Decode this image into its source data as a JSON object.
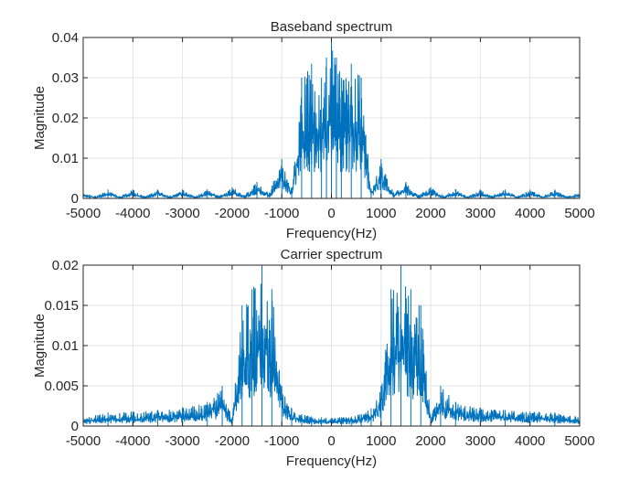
{
  "chart_data": [
    {
      "type": "line",
      "title": "Baseband spectrum",
      "xlabel": "Frequency(Hz)",
      "ylabel": "Magnitude",
      "xlim": [
        -5000,
        5000
      ],
      "ylim": [
        0,
        0.04
      ],
      "xticks": [
        -5000,
        -4000,
        -3000,
        -2000,
        -1000,
        0,
        1000,
        2000,
        3000,
        4000,
        5000
      ],
      "xtick_labels": [
        "-5000",
        "-4000",
        "-3000",
        "-2000",
        "-1000",
        "0",
        "1000",
        "2000",
        "3000",
        "4000",
        "5000"
      ],
      "yticks": [
        0,
        0.01,
        0.02,
        0.03,
        0.04
      ],
      "ytick_labels": [
        "0",
        "0.01",
        "0.02",
        "0.03",
        "0.04"
      ],
      "grid": true,
      "line_color": "#0072BD",
      "series": [
        {
          "x": [
            -5000,
            -4750,
            -4500,
            -4250,
            -4000,
            -3750,
            -3500,
            -3250,
            -3000,
            -2750,
            -2500,
            -2250,
            -2000,
            -1750,
            -1500,
            -1250,
            -1000,
            -800,
            -600,
            -400,
            -200,
            -100,
            0,
            100,
            200,
            400,
            600,
            800,
            1000,
            1250,
            1500,
            1750,
            2000,
            2250,
            2500,
            2750,
            3000,
            3250,
            3500,
            3750,
            4000,
            4250,
            4500,
            4750,
            5000
          ],
          "values": [
            0.0015,
            0.0005,
            0.0022,
            0.0005,
            0.0022,
            0.0005,
            0.0022,
            0.0005,
            0.0022,
            0.0005,
            0.0023,
            0.0006,
            0.0028,
            0.0008,
            0.0041,
            0.0015,
            0.0098,
            0.0025,
            0.03,
            0.0335,
            0.03,
            0.035,
            0.04,
            0.035,
            0.03,
            0.0335,
            0.03,
            0.0025,
            0.0098,
            0.0015,
            0.0041,
            0.0008,
            0.0028,
            0.0006,
            0.0023,
            0.0005,
            0.0022,
            0.0005,
            0.0022,
            0.0005,
            0.0022,
            0.0005,
            0.0022,
            0.0005,
            0.0015
          ]
        }
      ]
    },
    {
      "type": "line",
      "title": "Carrier spectrum",
      "xlabel": "Frequency(Hz)",
      "ylabel": "Magnitude",
      "xlim": [
        -5000,
        5000
      ],
      "ylim": [
        0,
        0.02
      ],
      "xticks": [
        -5000,
        -4000,
        -3000,
        -2000,
        -1000,
        0,
        1000,
        2000,
        3000,
        4000,
        5000
      ],
      "xtick_labels": [
        "-5000",
        "-4000",
        "-3000",
        "-2000",
        "-1000",
        "0",
        "1000",
        "2000",
        "3000",
        "4000",
        "5000"
      ],
      "yticks": [
        0,
        0.005,
        0.01,
        0.015,
        0.02
      ],
      "ytick_labels": [
        "0",
        "0.005",
        "0.01",
        "0.015",
        "0.02"
      ],
      "grid": true,
      "line_color": "#0072BD",
      "series": [
        {
          "x": [
            -5000,
            -4500,
            -4000,
            -3500,
            -3000,
            -2500,
            -2200,
            -2000,
            -1800,
            -1600,
            -1400,
            -1200,
            -1000,
            -800,
            -600,
            -400,
            -200,
            0,
            200,
            400,
            600,
            800,
            1000,
            1200,
            1400,
            1600,
            1800,
            2000,
            2200,
            2500,
            3000,
            3500,
            4000,
            4500,
            5000
          ],
          "values": [
            0.0012,
            0.0017,
            0.0018,
            0.002,
            0.0023,
            0.003,
            0.005,
            0.001,
            0.015,
            0.017,
            0.02,
            0.017,
            0.005,
            0.0022,
            0.0015,
            0.0012,
            0.0011,
            0.001,
            0.0011,
            0.0012,
            0.0015,
            0.0022,
            0.005,
            0.017,
            0.02,
            0.017,
            0.015,
            0.001,
            0.005,
            0.003,
            0.0023,
            0.002,
            0.0018,
            0.0017,
            0.0012
          ]
        }
      ]
    }
  ]
}
